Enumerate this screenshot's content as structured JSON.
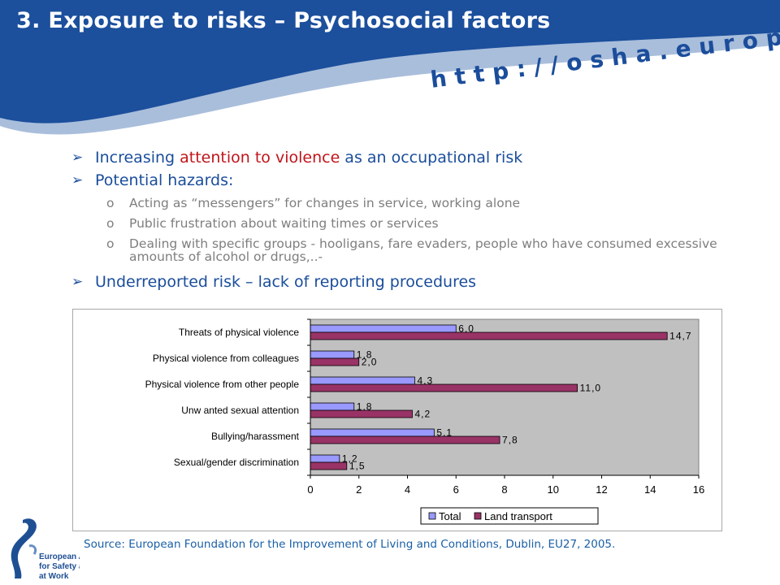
{
  "header": {
    "title": "3. Exposure to risks – Psychosocial factors",
    "url": "http://osha.europa.eu",
    "colors": {
      "band": "#1c4f9c",
      "wave": "#a9bedb"
    }
  },
  "bullets": {
    "b1_pre": "Increasing ",
    "b1_red": "attention to violence",
    "b1_post": " as an occupational risk",
    "b2": "Potential hazards:",
    "sub": [
      "Acting as “messengers” for changes in service, working alone",
      "Public frustration about waiting times or services",
      "Dealing with specific groups - hooligans, fare evaders, people who have consumed excessive amounts of alcohol or drugs,..-"
    ],
    "b3": "Underreported risk – lack of reporting procedures",
    "arrow_icon": "arrow-bullet-icon",
    "sub_marker": "o"
  },
  "chart_data": {
    "type": "bar",
    "orientation": "horizontal",
    "categories": [
      "Threats of physical violence",
      "Physical violence from colleagues",
      "Physical violence from other people",
      "Unw anted sexual attention",
      "Bullying/harassment",
      "Sexual/gender discrimination"
    ],
    "series": [
      {
        "name": "Total",
        "values": [
          6.0,
          1.8,
          4.3,
          1.8,
          5.1,
          1.2
        ],
        "labels": [
          "6,0",
          "1,8",
          "4,3",
          "1,8",
          "5,1",
          "1,2"
        ],
        "color": "#9999ff"
      },
      {
        "name": "Land transport",
        "values": [
          14.7,
          2.0,
          11.0,
          4.2,
          7.8,
          1.5
        ],
        "labels": [
          "14,7",
          "2,0",
          "11,0",
          "4,2",
          "7,8",
          "1,5"
        ],
        "color": "#993366"
      }
    ],
    "xlim": [
      0,
      16
    ],
    "xticks": [
      0,
      2,
      4,
      6,
      8,
      10,
      12,
      14,
      16
    ],
    "plot_background": "#c0c0c0",
    "legend_position": "bottom",
    "grid": false
  },
  "source": "Source: European Foundation for the Improvement of Living and Conditions, Dublin, EU27, 2005.",
  "logo": {
    "icon": "eu-osha-logo-icon",
    "lines": [
      "European Agency",
      "for Safety and Health",
      "at Work"
    ]
  }
}
